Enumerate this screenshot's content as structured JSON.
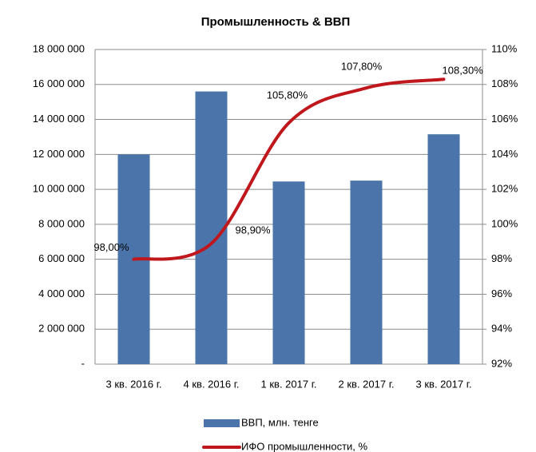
{
  "chart_data": {
    "type": "bar-line",
    "title": "Промышленность & ВВП",
    "categories": [
      "3 кв. 2016 г.",
      "4 кв. 2016 г.",
      "1 кв. 2017 г.",
      "2 кв. 2017 г.",
      "3 кв. 2017 г."
    ],
    "series": [
      {
        "name": "ВВП, млн. тенге",
        "color": "#4a74aa",
        "type": "bar",
        "values": [
          12000000,
          15600000,
          10450000,
          10500000,
          13150000
        ]
      },
      {
        "name": "ИФО промышленности, %",
        "color": "#c0171c",
        "type": "line",
        "axis": "y2",
        "values": [
          98.0,
          98.9,
          105.8,
          107.8,
          108.3
        ],
        "value_labels": [
          "98,00%",
          "98,90%",
          "105,80%",
          "107,80%",
          "108,30%"
        ]
      }
    ],
    "ylim": [
      0,
      18000000
    ],
    "yticks": [
      {
        "value": 0,
        "label": "-"
      },
      {
        "value": 2000000,
        "label": "2 000 000"
      },
      {
        "value": 4000000,
        "label": "4 000 000"
      },
      {
        "value": 6000000,
        "label": "6 000 000"
      },
      {
        "value": 8000000,
        "label": "8 000 000"
      },
      {
        "value": 10000000,
        "label": "10 000 000"
      },
      {
        "value": 12000000,
        "label": "12 000 000"
      },
      {
        "value": 14000000,
        "label": "14 000 000"
      },
      {
        "value": 16000000,
        "label": "16 000 000"
      },
      {
        "value": 18000000,
        "label": "18 000 000"
      }
    ],
    "y2lim": [
      92,
      110
    ],
    "y2ticks": [
      {
        "value": 92,
        "label": "92%"
      },
      {
        "value": 94,
        "label": "94%"
      },
      {
        "value": 96,
        "label": "96%"
      },
      {
        "value": 98,
        "label": "98%"
      },
      {
        "value": 100,
        "label": "100%"
      },
      {
        "value": 102,
        "label": "102%"
      },
      {
        "value": 104,
        "label": "104%"
      },
      {
        "value": 106,
        "label": "106%"
      },
      {
        "value": 108,
        "label": "108%"
      },
      {
        "value": 110,
        "label": "110%"
      }
    ],
    "grid": true,
    "legend": "bottom"
  }
}
